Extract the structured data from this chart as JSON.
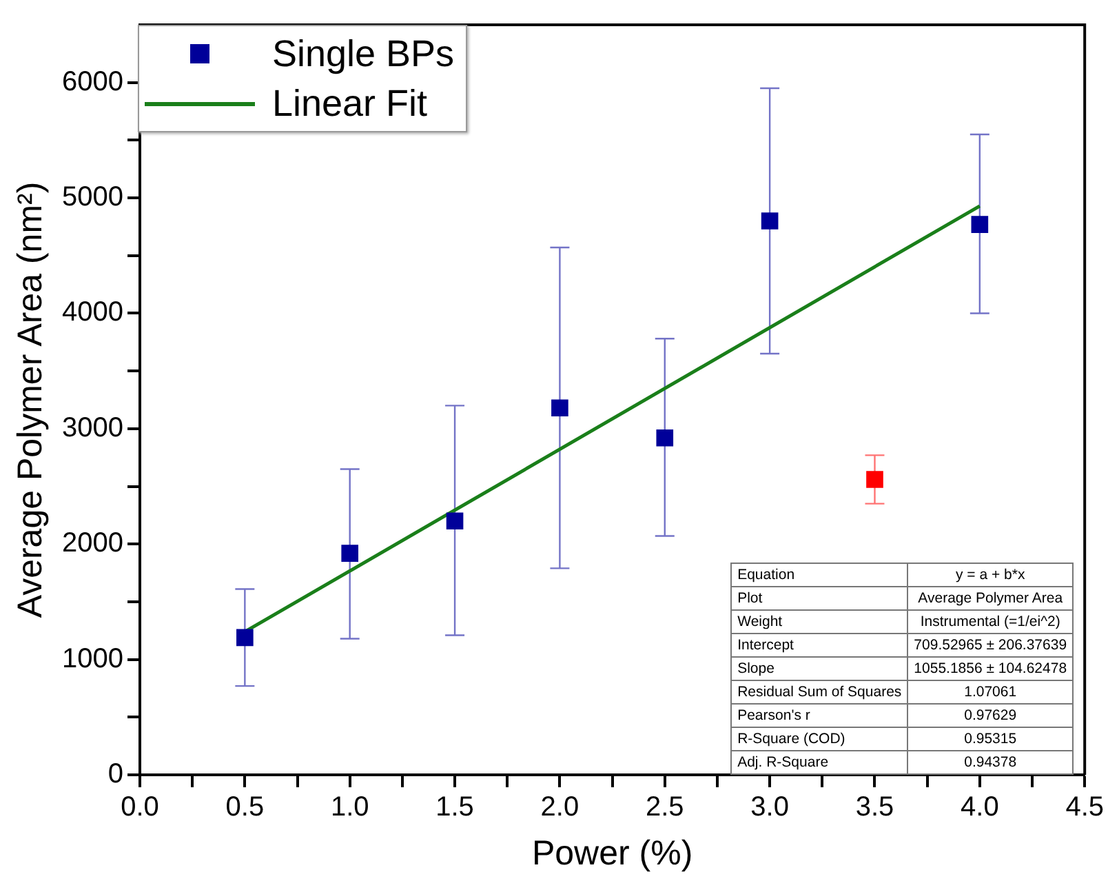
{
  "chart_data": {
    "type": "scatter",
    "xlabel": "Power (%)",
    "ylabel": "Average Polymer Area (nm²)",
    "xlim": [
      0,
      4.5
    ],
    "ylim": [
      0,
      6500
    ],
    "xticks": [
      {
        "value": 0,
        "label": "0.0"
      },
      {
        "value": 0.25,
        "label": null
      },
      {
        "value": 0.5,
        "label": "0.5"
      },
      {
        "value": 0.75,
        "label": null
      },
      {
        "value": 1,
        "label": "1.0"
      },
      {
        "value": 1.25,
        "label": null
      },
      {
        "value": 1.5,
        "label": "1.5"
      },
      {
        "value": 1.75,
        "label": null
      },
      {
        "value": 2,
        "label": "2.0"
      },
      {
        "value": 2.25,
        "label": null
      },
      {
        "value": 2.5,
        "label": "2.5"
      },
      {
        "value": 2.75,
        "label": null
      },
      {
        "value": 3,
        "label": "3.0"
      },
      {
        "value": 3.25,
        "label": null
      },
      {
        "value": 3.5,
        "label": "3.5"
      },
      {
        "value": 3.75,
        "label": null
      },
      {
        "value": 4,
        "label": "4.0"
      },
      {
        "value": 4.25,
        "label": null
      },
      {
        "value": 4.5,
        "label": "4.5"
      }
    ],
    "yticks": [
      0,
      {
        "value": 500,
        "label": null
      },
      1000,
      {
        "value": 1500,
        "label": null
      },
      2000,
      {
        "value": 2500,
        "label": null
      },
      3000,
      {
        "value": 3500,
        "label": null
      },
      4000,
      {
        "value": 4500,
        "label": null
      },
      5000,
      {
        "value": 5500,
        "label": null
      },
      6000
    ],
    "series": [
      {
        "name": "Single BPs",
        "marker": "square",
        "color": "#000099",
        "x": [
          0.5,
          1,
          1.5,
          2,
          2.5,
          3,
          4
        ],
        "values": [
          1190,
          1920,
          2200,
          3180,
          2920,
          4800,
          4770
        ],
        "errors": [
          [
            770,
            1610
          ],
          [
            1180,
            2650
          ],
          [
            1210,
            3200
          ],
          [
            1790,
            4570
          ],
          [
            2070,
            3780
          ],
          [
            3650,
            5950
          ],
          [
            4000,
            5550
          ]
        ]
      },
      {
        "marker": "square",
        "color": "#ff0000",
        "x": [
          3.5
        ],
        "values": [
          2560
        ],
        "errors": [
          [
            2350,
            2770
          ]
        ]
      },
      {
        "name": "Linear Fit",
        "type": "line",
        "color": "#1a7f1a",
        "x": [
          0.5,
          4
        ],
        "values": [
          1240,
          4930
        ]
      }
    ],
    "legend": "top left",
    "grid": false,
    "annotations": [
      "Equation",
      "y = a + b*x",
      "Plot",
      "Average Polymer Area",
      "Weight",
      "Instrumental (=1/ei^2)",
      "Intercept",
      "709.52965 ± 206.37639",
      "Slope",
      "1055.1856 ± 104.62478",
      "Residual Sum of Squares",
      "1.07061",
      "Pearson's r",
      "0.97629",
      "R-Square (COD)",
      "0.95315",
      "Adj. R-Square",
      "0.94378"
    ]
  }
}
